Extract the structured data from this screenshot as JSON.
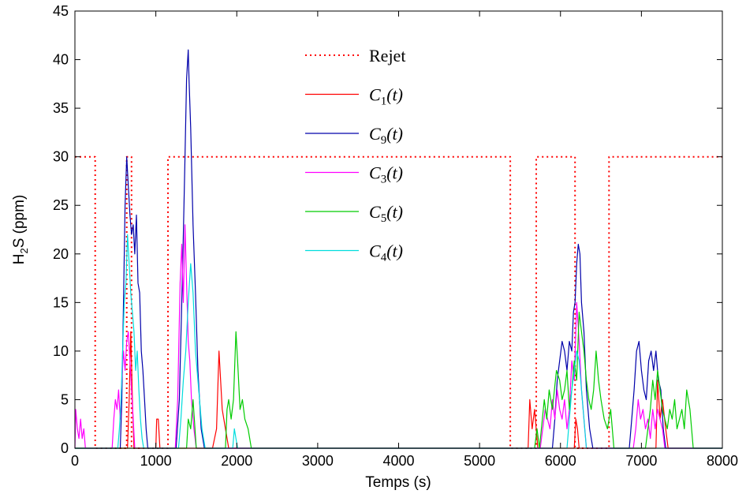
{
  "chart_data": {
    "type": "line",
    "xlabel": "Temps (s)",
    "ylabel_main": "H",
    "ylabel_sub": "2",
    "ylabel_rest": "S (ppm)",
    "xlim": [
      0,
      8000
    ],
    "ylim": [
      0,
      45
    ],
    "xticks": [
      0,
      1000,
      2000,
      3000,
      4000,
      5000,
      6000,
      7000,
      8000
    ],
    "yticks": [
      0,
      5,
      10,
      15,
      20,
      25,
      30,
      35,
      40,
      45
    ],
    "xtick_labels": [
      "0",
      "1000",
      "2000",
      "3000",
      "4000",
      "5000",
      "6000",
      "7000",
      "8000"
    ],
    "ytick_labels": [
      "0",
      "5",
      "10",
      "15",
      "20",
      "25",
      "30",
      "35",
      "40",
      "45"
    ],
    "grid": false,
    "legend_position": "top-center",
    "series": [
      {
        "name": "Rejet",
        "legend": {
          "main": "Rejet",
          "sub": "",
          "tail": ""
        },
        "color": "#ff0000",
        "style": "dotted",
        "x": [
          0,
          250,
          250,
          640,
          640,
          700,
          700,
          1150,
          1150,
          5380,
          5380,
          5700,
          5700,
          6180,
          6180,
          6600,
          6600,
          8000
        ],
        "y": [
          30,
          30,
          0,
          0,
          30,
          30,
          0,
          0,
          30,
          30,
          0,
          0,
          30,
          30,
          0,
          0,
          30,
          30
        ]
      },
      {
        "name": "C1(t)",
        "legend": {
          "main": "C",
          "sub": "1",
          "tail": "(t)"
        },
        "color": "#ff0000",
        "style": "solid",
        "x": [
          0,
          650,
          670,
          690,
          710,
          730,
          1000,
          1010,
          1030,
          1050,
          1700,
          1750,
          1780,
          1820,
          1860,
          1900,
          5600,
          5620,
          5650,
          5680,
          5720,
          6170,
          6190,
          6210,
          6230,
          7180,
          7200,
          7230,
          7260,
          7300,
          7330,
          8000
        ],
        "y": [
          0,
          0,
          5,
          12,
          5,
          0,
          0,
          3,
          3,
          0,
          0,
          2,
          10,
          4,
          2,
          0,
          0,
          5,
          2,
          4,
          0,
          0,
          3,
          2,
          0,
          0,
          7,
          3,
          5,
          2,
          0,
          0
        ]
      },
      {
        "name": "C9(t)",
        "legend": {
          "main": "C",
          "sub": "9",
          "tail": "(t)"
        },
        "color": "#0000aa",
        "style": "solid",
        "x": [
          0,
          560,
          580,
          600,
          620,
          640,
          660,
          680,
          700,
          720,
          740,
          760,
          780,
          800,
          820,
          840,
          860,
          880,
          900,
          1250,
          1290,
          1320,
          1340,
          1360,
          1380,
          1400,
          1410,
          1430,
          1460,
          1490,
          1520,
          1560,
          1600,
          5900,
          5930,
          5960,
          5990,
          6020,
          6050,
          6080,
          6110,
          6140,
          6160,
          6180,
          6200,
          6220,
          6240,
          6260,
          6290,
          6320,
          6360,
          6400,
          6850,
          6880,
          6910,
          6940,
          6970,
          7000,
          7030,
          7060,
          7090,
          7120,
          7150,
          7180,
          7210,
          7240,
          7270,
          7300,
          8000
        ],
        "y": [
          0,
          0,
          5,
          15,
          25,
          30,
          27,
          24,
          22,
          23,
          20,
          24,
          17,
          16,
          10,
          8,
          5,
          2,
          0,
          0,
          5,
          15,
          22,
          30,
          38,
          41,
          38,
          33,
          23,
          16,
          8,
          2,
          0,
          0,
          3,
          7,
          9,
          11,
          10,
          8,
          11,
          10,
          14,
          15,
          19,
          21,
          20,
          15,
          12,
          6,
          2,
          0,
          0,
          3,
          6,
          10,
          11,
          8,
          6,
          5,
          9,
          10,
          8,
          10,
          7,
          6,
          2,
          0,
          0
        ]
      },
      {
        "name": "C3(t)",
        "legend": {
          "main": "C",
          "sub": "3",
          "tail": "(t)"
        },
        "color": "#ff00ff",
        "style": "solid",
        "x": [
          0,
          10,
          30,
          50,
          70,
          90,
          110,
          130,
          460,
          480,
          500,
          520,
          540,
          560,
          580,
          600,
          620,
          640,
          660,
          680,
          700,
          720,
          740,
          1240,
          1270,
          1300,
          1320,
          1340,
          1360,
          1380,
          1400,
          1420,
          1440,
          1470,
          1500,
          5750,
          5780,
          5810,
          5840,
          5870,
          5900,
          5930,
          5960,
          5990,
          6020,
          6050,
          6080,
          6110,
          6140,
          6170,
          6200,
          6230,
          6260,
          6290,
          6320,
          6900,
          6930,
          6960,
          6990,
          7020,
          7050,
          7080,
          7110,
          7140,
          7170,
          7200,
          7230,
          7260,
          7290,
          8000
        ],
        "y": [
          0,
          4,
          2,
          1,
          3,
          1,
          2,
          0,
          0,
          3,
          5,
          4,
          6,
          3,
          7,
          10,
          8,
          11,
          12,
          9,
          6,
          3,
          0,
          0,
          5,
          17,
          21,
          15,
          23,
          17,
          11,
          9,
          5,
          2,
          0,
          0,
          2,
          4,
          3,
          2,
          5,
          3,
          6,
          4,
          3,
          5,
          2,
          4,
          9,
          7,
          15,
          11,
          6,
          3,
          0,
          0,
          2,
          5,
          3,
          4,
          2,
          3,
          1,
          4,
          2,
          4,
          3,
          2,
          0,
          0
        ]
      },
      {
        "name": "C5(t)",
        "legend": {
          "main": "C",
          "sub": "5",
          "tail": "(t)"
        },
        "color": "#00cc00",
        "style": "solid",
        "x": [
          0,
          1380,
          1400,
          1430,
          1460,
          1500,
          1860,
          1880,
          1900,
          1930,
          1960,
          1990,
          2010,
          2040,
          2070,
          2100,
          2140,
          2180,
          5680,
          5710,
          5740,
          5800,
          5830,
          5860,
          5900,
          5950,
          5990,
          6020,
          6050,
          6080,
          6110,
          6140,
          6170,
          6200,
          6230,
          6260,
          6290,
          6320,
          6350,
          6380,
          6410,
          6440,
          6470,
          6500,
          6540,
          6580,
          6620,
          6660,
          7050,
          7080,
          7110,
          7140,
          7170,
          7200,
          7230,
          7260,
          7290,
          7320,
          7350,
          7380,
          7410,
          7440,
          7470,
          7500,
          7530,
          7560,
          7600,
          7640,
          8000
        ],
        "y": [
          0,
          0,
          3,
          2,
          5,
          0,
          0,
          4,
          5,
          3,
          5,
          12,
          9,
          4,
          5,
          3,
          2,
          0,
          0,
          2,
          0,
          5,
          3,
          6,
          4,
          8,
          7,
          5,
          6,
          8,
          4,
          6,
          9,
          7,
          14,
          12,
          10,
          7,
          5,
          4,
          6,
          10,
          7,
          5,
          3,
          2,
          4,
          0,
          0,
          2,
          4,
          7,
          5,
          8,
          6,
          4,
          3,
          2,
          4,
          3,
          5,
          2,
          3,
          4,
          2,
          6,
          4,
          0,
          0
        ]
      },
      {
        "name": "C4(t)",
        "legend": {
          "main": "C",
          "sub": "4",
          "tail": "(t)"
        },
        "color": "#00dddd",
        "style": "solid",
        "x": [
          0,
          530,
          550,
          570,
          590,
          610,
          630,
          650,
          670,
          690,
          710,
          730,
          750,
          770,
          790,
          810,
          830,
          850,
          1280,
          1310,
          1340,
          1370,
          1400,
          1430,
          1460,
          1490,
          1530,
          1570,
          1610,
          1950,
          1970,
          1990,
          2010,
          6080,
          6110,
          6140,
          6170,
          6200,
          6230,
          6260,
          6290,
          6320,
          8000
        ],
        "y": [
          0,
          0,
          2,
          5,
          10,
          15,
          17,
          22,
          19,
          16,
          14,
          12,
          8,
          10,
          6,
          3,
          1,
          0,
          0,
          3,
          7,
          10,
          15,
          19,
          16,
          10,
          6,
          2,
          0,
          0,
          2,
          1,
          0,
          0,
          3,
          6,
          8,
          10,
          9,
          6,
          3,
          0,
          0
        ]
      }
    ]
  }
}
